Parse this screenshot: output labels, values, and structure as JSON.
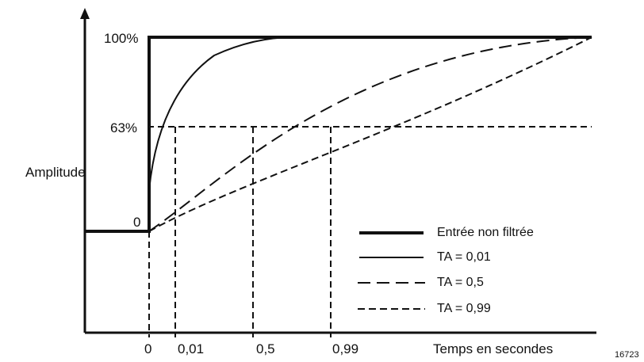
{
  "figure_number": "16723",
  "y_axis": {
    "label": "Amplitude",
    "tick_labels": {
      "full": "100%",
      "time_constant": "63%",
      "zero": "0"
    }
  },
  "x_axis": {
    "label": "Temps en secondes",
    "tick_labels": [
      "0",
      "0,01",
      "0,5",
      "0,99"
    ]
  },
  "legend": {
    "items": [
      {
        "label": "Entrée non filtrée",
        "style": "thick-solid"
      },
      {
        "label": "TA = 0,01",
        "style": "solid"
      },
      {
        "label": "TA = 0,5",
        "style": "long-dash"
      },
      {
        "label": "TA = 0,99",
        "style": "short-dash"
      }
    ]
  },
  "colors": {
    "line": "#111111",
    "background": "#ffffff"
  }
}
